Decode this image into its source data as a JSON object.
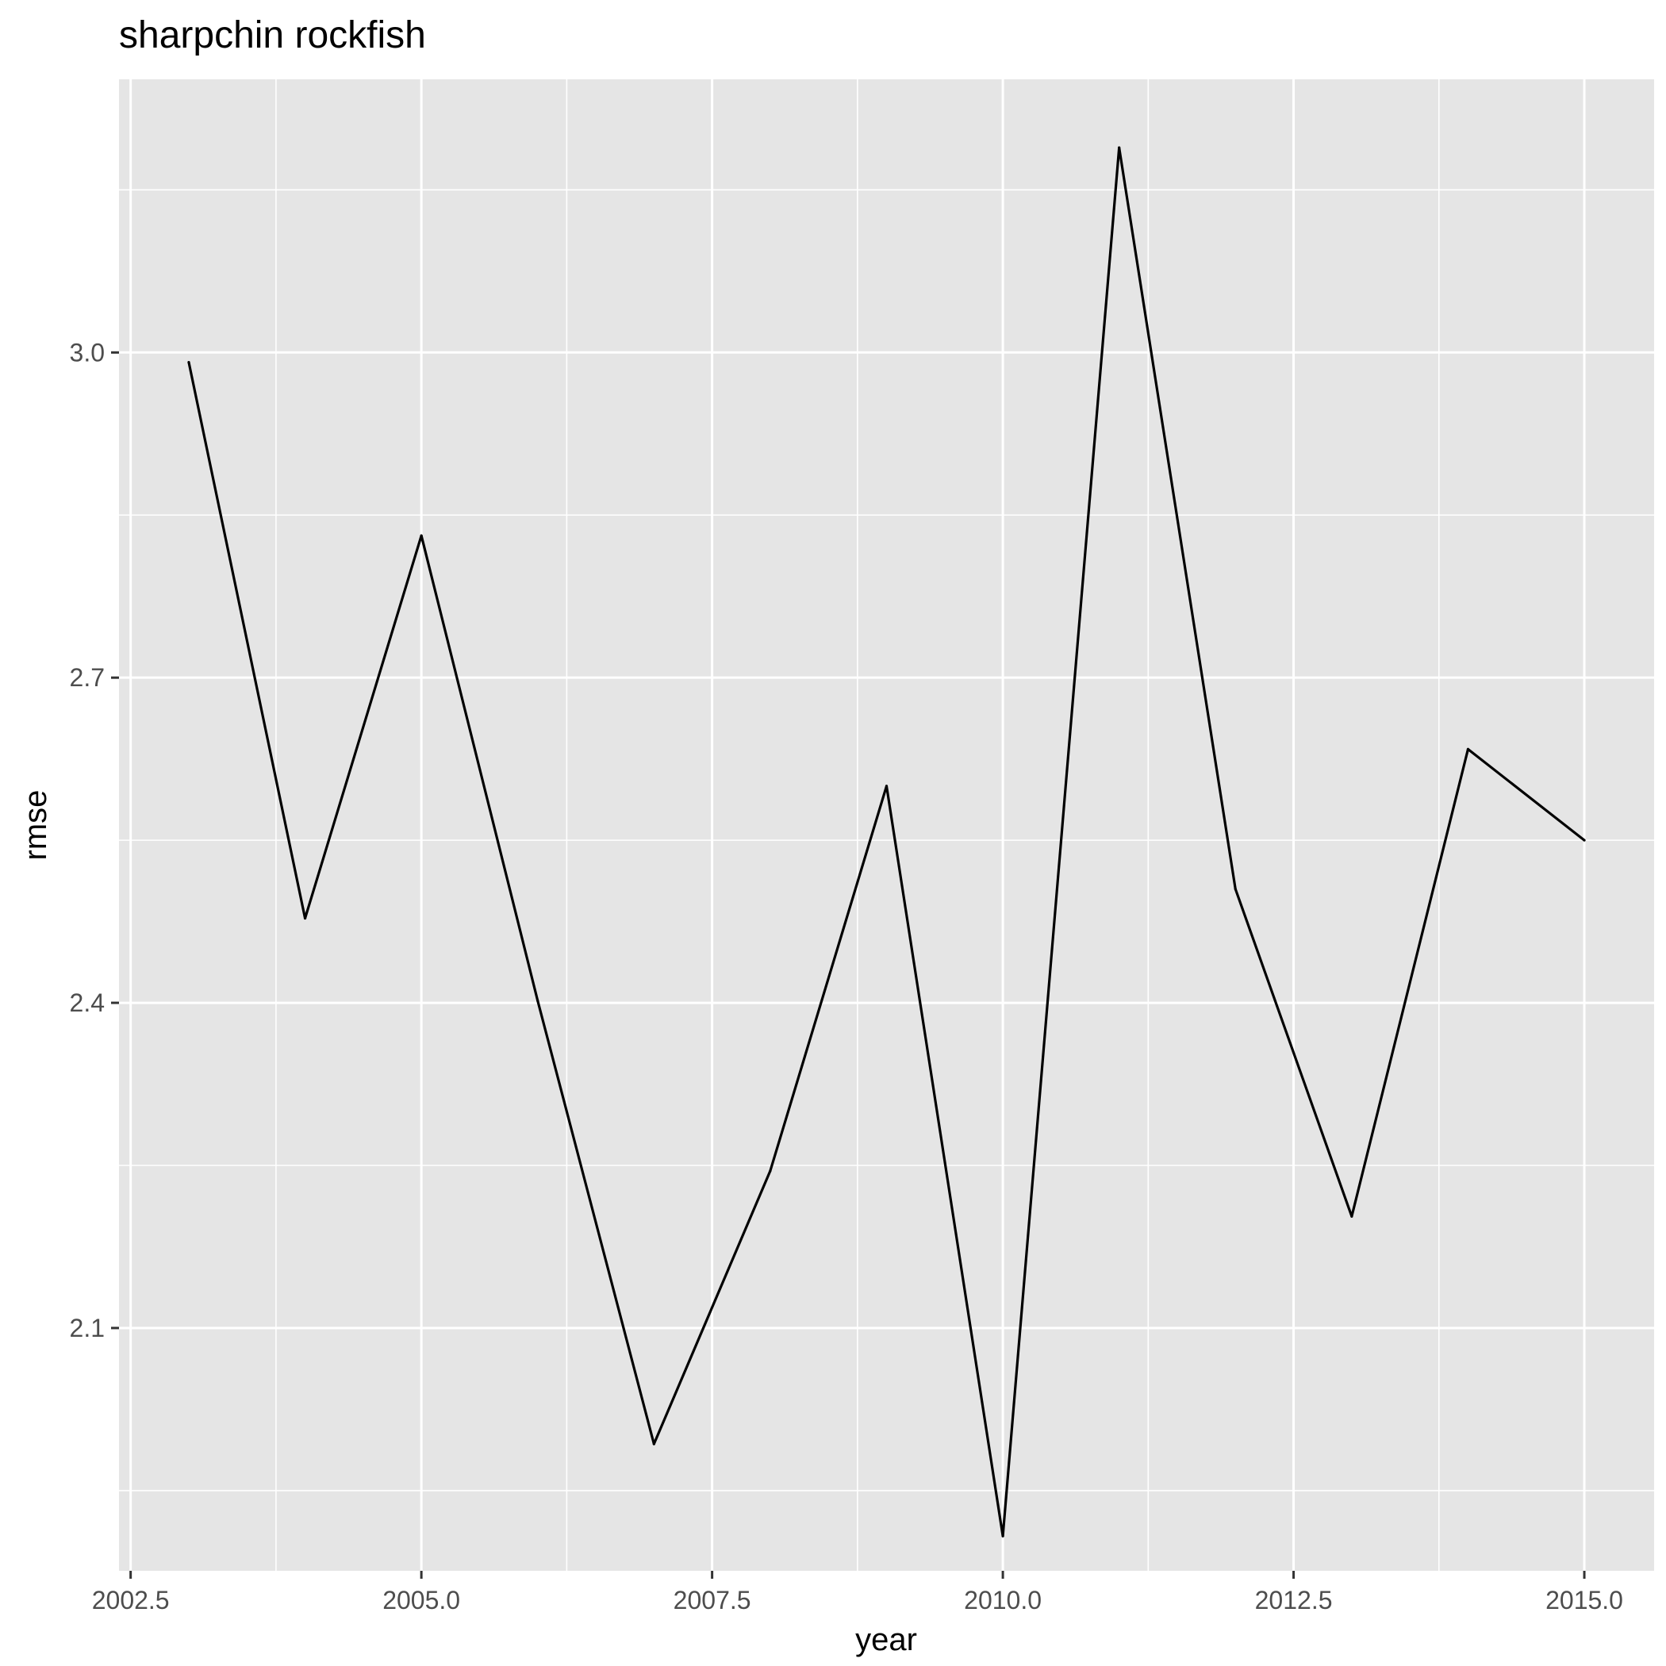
{
  "chart_data": {
    "type": "line",
    "title": "sharpchin rockfish",
    "xlabel": "year",
    "ylabel": "rmse",
    "x": [
      2003,
      2004,
      2005,
      2006,
      2007,
      2008,
      2009,
      2010,
      2011,
      2012,
      2013,
      2014,
      2015
    ],
    "series": [
      {
        "values": [
          2.991,
          2.478,
          2.831,
          2.402,
          1.993,
          2.245,
          2.6,
          1.908,
          3.189,
          2.505,
          2.203,
          2.634,
          2.55
        ]
      }
    ],
    "xlim": [
      2002.4,
      2015.6
    ],
    "ylim": [
      1.876,
      3.252
    ],
    "x_ticks": [
      "2002.5",
      "2005.0",
      "2007.5",
      "2010.0",
      "2012.5",
      "2015.0"
    ],
    "y_ticks": [
      "2.1",
      "2.4",
      "2.7",
      "3.0"
    ],
    "grid": true,
    "legend": "none",
    "colors": {
      "panel_background": "#e5e5e5",
      "grid_line": "#ffffff",
      "series_line": "#000000",
      "tick_label": "#4d4d4d"
    }
  }
}
